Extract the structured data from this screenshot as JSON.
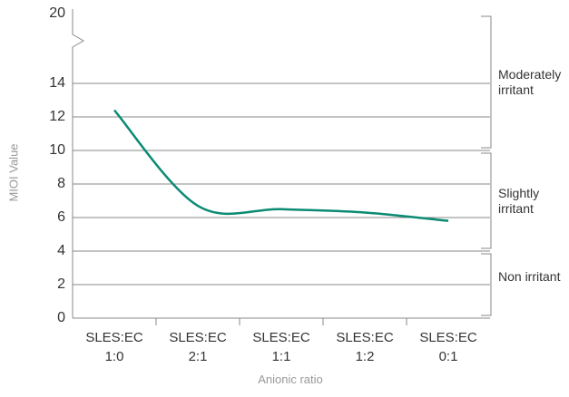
{
  "chart_data": {
    "type": "line",
    "x_label": "Anionic ratio",
    "y_label": "MIOI Value",
    "categories": [
      "SLES:EC 1:0",
      "SLES:EC 2:1",
      "SLES:EC 1:1",
      "SLES:EC 1:2",
      "SLES:EC 0:1"
    ],
    "values": [
      12.4,
      6.7,
      6.5,
      6.3,
      5.8
    ],
    "color": "#0b8a74",
    "ylim": [
      0,
      20
    ],
    "yticks": [
      0,
      2,
      4,
      6,
      8,
      10,
      12,
      14,
      20
    ],
    "axis_break": [
      14,
      20
    ],
    "grid": true,
    "zones": [
      {
        "label": "Moderately irritant",
        "from": 10,
        "to": 20
      },
      {
        "label": "Slightly irritant",
        "from": 4,
        "to": 10
      },
      {
        "label": "Non irritant",
        "from": 0,
        "to": 4
      }
    ]
  }
}
